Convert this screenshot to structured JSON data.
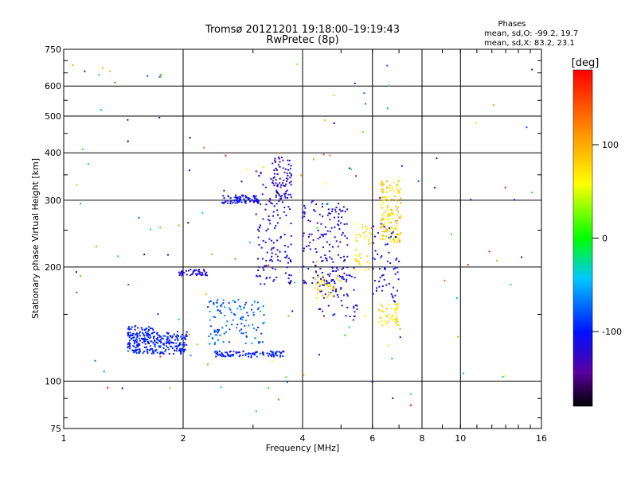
{
  "chart_data": {
    "type": "scatter",
    "title": "Tromsø 20121201 19:18:00–19:19:43",
    "subtitle": "RwPretec (8p)",
    "stats": {
      "heading": "Phases",
      "o_mode": "mean, sd,O: -99.2, 19.7",
      "x_mode": "mean, sd,X: 83.2, 23.1"
    },
    "xlabel": "Frequency [MHz]",
    "ylabel": "Stationary phase Virtual Height [km]",
    "x_scale": "log2",
    "y_scale": "log",
    "xlim": [
      1,
      16
    ],
    "ylim": [
      75,
      750
    ],
    "x_ticks": [
      1,
      2,
      4,
      6,
      8,
      10,
      16
    ],
    "x_grid": [
      2,
      4,
      6,
      8,
      10
    ],
    "y_ticks": [
      75,
      100,
      200,
      300,
      400,
      500,
      600,
      750
    ],
    "y_grid": [
      100,
      200,
      300,
      400,
      500,
      600
    ],
    "grid": true,
    "colorbar": {
      "unit": "[deg]",
      "range": [
        -180,
        180
      ],
      "ticks": [
        100,
        0,
        -100
      ]
    },
    "clusters": [
      {
        "fx": [
          1.45,
          2.05
        ],
        "hy": [
          118,
          135
        ],
        "phase": [
          -115,
          -80
        ],
        "count": 260
      },
      {
        "fx": [
          1.45,
          1.7
        ],
        "hy": [
          128,
          140
        ],
        "phase": [
          -110,
          -85
        ],
        "count": 50
      },
      {
        "fx": [
          1.95,
          2.3
        ],
        "hy": [
          190,
          197
        ],
        "phase": [
          -125,
          -110
        ],
        "count": 45
      },
      {
        "fx": [
          2.4,
          3.6
        ],
        "hy": [
          116,
          120
        ],
        "phase": [
          -115,
          -80
        ],
        "count": 100
      },
      {
        "fx": [
          2.3,
          3.2
        ],
        "hy": [
          125,
          165
        ],
        "phase": [
          -95,
          -55
        ],
        "count": 120
      },
      {
        "fx": [
          2.5,
          3.1
        ],
        "hy": [
          294,
          310
        ],
        "phase": [
          -120,
          -95
        ],
        "count": 80
      },
      {
        "fx": [
          3.05,
          3.75
        ],
        "hy": [
          180,
          360
        ],
        "phase": [
          -130,
          -100
        ],
        "count": 140
      },
      {
        "fx": [
          3.35,
          3.75
        ],
        "hy": [
          300,
          390
        ],
        "phase": [
          -140,
          -110
        ],
        "count": 60
      },
      {
        "fx": [
          4.0,
          5.2
        ],
        "hy": [
          180,
          300
        ],
        "phase": [
          -135,
          -100
        ],
        "count": 140
      },
      {
        "fx": [
          4.4,
          5.5
        ],
        "hy": [
          145,
          200
        ],
        "phase": [
          -130,
          -95
        ],
        "count": 70
      },
      {
        "fx": [
          4.3,
          5.0
        ],
        "hy": [
          165,
          190
        ],
        "phase": [
          45,
          95
        ],
        "count": 40
      },
      {
        "fx": [
          5.4,
          6.0
        ],
        "hy": [
          195,
          260
        ],
        "phase": [
          55,
          90
        ],
        "count": 40
      },
      {
        "fx": [
          6.3,
          7.1
        ],
        "hy": [
          230,
          340
        ],
        "phase": [
          45,
          105
        ],
        "count": 140
      },
      {
        "fx": [
          6.2,
          7.0
        ],
        "hy": [
          140,
          160
        ],
        "phase": [
          55,
          90
        ],
        "count": 50
      },
      {
        "fx": [
          6.0,
          7.0
        ],
        "hy": [
          160,
          260
        ],
        "phase": [
          -120,
          -90
        ],
        "count": 60
      }
    ],
    "scattered_points": 140
  }
}
